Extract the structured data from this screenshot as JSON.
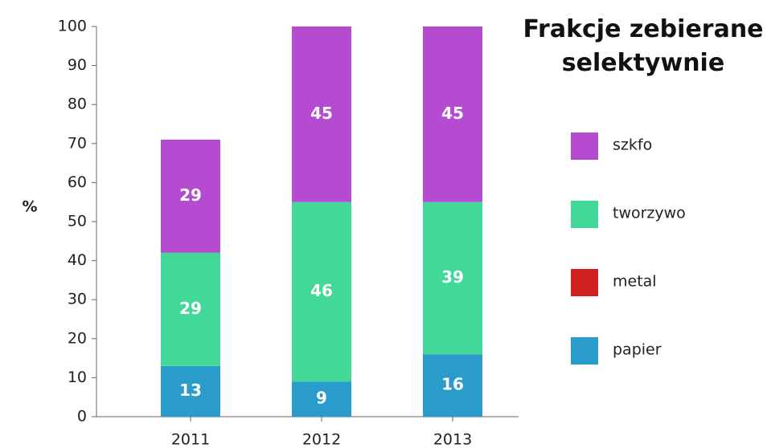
{
  "chart_data": {
    "type": "bar",
    "stacked": true,
    "title": "Frakcje zebierane selektywnie",
    "ylabel": "%",
    "categories": [
      "2011",
      "2012",
      "2013"
    ],
    "series": [
      {
        "name": "papier",
        "color": "#2a9ccc",
        "values": [
          13,
          9,
          16
        ]
      },
      {
        "name": "metal",
        "color": "#d02020",
        "values": [
          0,
          0,
          0
        ]
      },
      {
        "name": "tworzywo",
        "color": "#42d898",
        "values": [
          29,
          46,
          39
        ]
      },
      {
        "name": "szkfo",
        "color": "#b44bd0",
        "values": [
          29,
          45,
          45
        ]
      }
    ],
    "ylim": [
      0,
      100
    ],
    "yticks": [
      0,
      10,
      20,
      30,
      40,
      50,
      60,
      70,
      80,
      90,
      100
    ],
    "legend": "right"
  }
}
